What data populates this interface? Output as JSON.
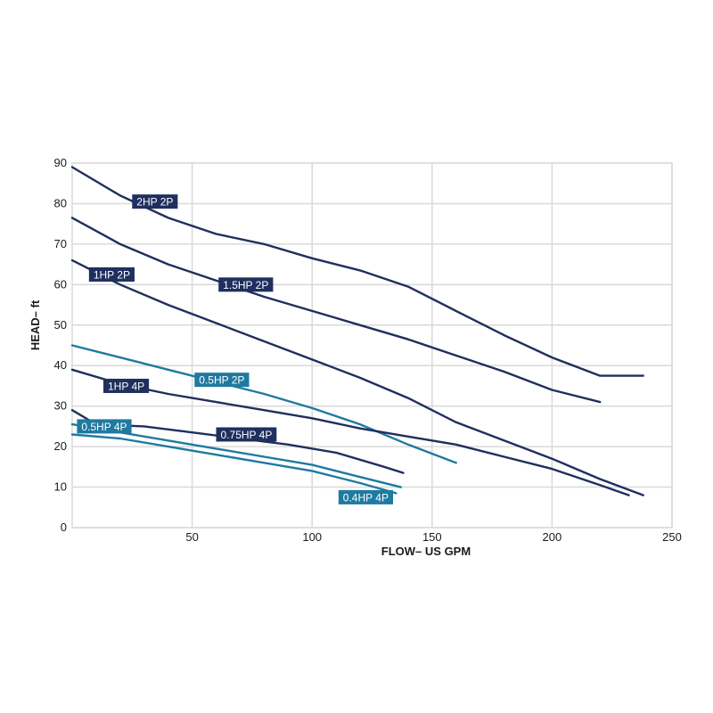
{
  "chart_data": {
    "type": "line",
    "title": "",
    "xlabel": "FLOW– US GPM",
    "ylabel": "HEAD– ft",
    "xlim": [
      0,
      250
    ],
    "ylim": [
      0,
      90
    ],
    "x_ticks": [
      50,
      100,
      150,
      200,
      250
    ],
    "y_ticks": [
      0,
      10,
      20,
      30,
      40,
      50,
      60,
      70,
      80,
      90
    ],
    "grid": true,
    "series": [
      {
        "name": "2HP 2P",
        "color": "#1f2f5e",
        "points": [
          [
            0,
            89
          ],
          [
            20,
            82
          ],
          [
            40,
            76.5
          ],
          [
            60,
            72.5
          ],
          [
            80,
            70
          ],
          [
            100,
            66.5
          ],
          [
            120,
            63.5
          ],
          [
            140,
            59.5
          ],
          [
            160,
            53.5
          ],
          [
            180,
            47.5
          ],
          [
            200,
            42
          ],
          [
            220,
            37.5
          ]
        ],
        "points_tail": [
          [
            238,
            37.5
          ]
        ]
      },
      {
        "name": "1.5HP 2P",
        "color": "#1f2f5e",
        "points": [
          [
            0,
            76.5
          ],
          [
            20,
            70
          ],
          [
            40,
            65
          ],
          [
            60,
            61
          ],
          [
            80,
            57
          ],
          [
            100,
            53.5
          ],
          [
            120,
            50
          ],
          [
            140,
            46.5
          ],
          [
            160,
            42.5
          ],
          [
            180,
            38.5
          ],
          [
            200,
            34
          ],
          [
            220,
            31
          ]
        ]
      },
      {
        "name": "1HP 2P",
        "color": "#1f2f5e",
        "points": [
          [
            0,
            66
          ],
          [
            20,
            60
          ],
          [
            40,
            55
          ],
          [
            60,
            50.5
          ],
          [
            80,
            46
          ],
          [
            100,
            41.5
          ],
          [
            120,
            37
          ],
          [
            140,
            32
          ],
          [
            160,
            26
          ],
          [
            180,
            21.5
          ],
          [
            200,
            17
          ],
          [
            220,
            12
          ],
          [
            238,
            8
          ]
        ]
      },
      {
        "name": "0.5HP 2P",
        "color": "#1f7aa0",
        "points": [
          [
            0,
            45
          ],
          [
            20,
            42
          ],
          [
            40,
            39
          ],
          [
            60,
            36
          ],
          [
            80,
            33
          ],
          [
            100,
            29.5
          ],
          [
            120,
            25.5
          ],
          [
            140,
            20.5
          ],
          [
            160,
            16
          ]
        ]
      },
      {
        "name": "1HP 4P",
        "color": "#1f2f5e",
        "points": [
          [
            0,
            39
          ],
          [
            20,
            35.5
          ],
          [
            40,
            33
          ],
          [
            60,
            31
          ],
          [
            80,
            29
          ],
          [
            100,
            27
          ],
          [
            120,
            24.5
          ],
          [
            140,
            22.5
          ],
          [
            160,
            20.5
          ],
          [
            180,
            17.5
          ],
          [
            200,
            14.5
          ],
          [
            220,
            10.5
          ],
          [
            232,
            8
          ]
        ]
      },
      {
        "name": "0.75HP 4P",
        "color": "#1f2f5e",
        "points": [
          [
            0,
            29
          ],
          [
            10,
            25.5
          ],
          [
            30,
            25
          ],
          [
            50,
            23.5
          ],
          [
            70,
            22
          ],
          [
            90,
            20.5
          ],
          [
            110,
            18.5
          ],
          [
            130,
            15
          ],
          [
            138,
            13.5
          ]
        ]
      },
      {
        "name": "0.5HP 4P",
        "color": "#1f7aa0",
        "points": [
          [
            0,
            25.5
          ],
          [
            20,
            23.5
          ],
          [
            40,
            21.5
          ],
          [
            60,
            19.5
          ],
          [
            80,
            17.5
          ],
          [
            100,
            15.5
          ],
          [
            120,
            12.5
          ],
          [
            137,
            10
          ]
        ]
      },
      {
        "name": "0.4HP 4P",
        "color": "#1f7aa0",
        "points": [
          [
            0,
            23
          ],
          [
            20,
            22
          ],
          [
            40,
            20
          ],
          [
            60,
            18
          ],
          [
            80,
            16
          ],
          [
            100,
            14
          ],
          [
            120,
            11
          ],
          [
            135,
            8.5
          ]
        ]
      }
    ]
  },
  "label_colors": {
    "dark": "#1f2f5e",
    "teal": "#1f7aa0"
  }
}
